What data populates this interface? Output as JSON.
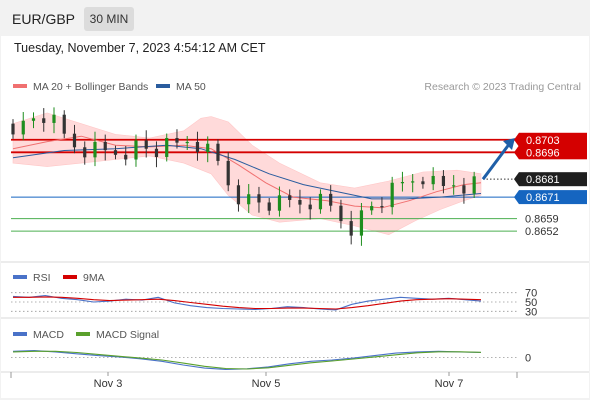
{
  "header": {
    "symbol": "EUR/GBP",
    "timeframe": "30 MIN",
    "datetime": "Tuesday, November 7, 2023 4:54:12 AM CET"
  },
  "legend": {
    "ma20": "MA 20 + Bollinger Bands",
    "ma50": "MA 50",
    "copyright": "Research © 2023 Trading Central",
    "rsi": "RSI",
    "rsi_ma": "9MA",
    "macd": "MACD",
    "macd_signal": "MACD Signal"
  },
  "colors": {
    "candle_up": "#1e8e1e",
    "candle_down": "#333333",
    "ma20": "#f07070",
    "ma50": "#2a5c9e",
    "band_fill": "#ffd6d6",
    "resistance": "#d40000",
    "pivot": "#1565c0",
    "support": "#4caf50",
    "rsi": "#4a72c8",
    "rsi_ma": "#d40000",
    "macd": "#4a72c8",
    "macd_signal": "#5aa02c",
    "current_price_bg": "#1f1f1f"
  },
  "chart_data": [
    {
      "type": "candlestick",
      "title": "EUR/GBP",
      "x_labels": [
        "Nov 3",
        "Nov 5",
        "Nov 7"
      ],
      "ylim": [
        0.8637,
        0.8728
      ],
      "levels": [
        {
          "label": "0.8703",
          "value": 0.8703,
          "kind": "resistance"
        },
        {
          "label": "0.8696",
          "value": 0.8696,
          "kind": "resistance"
        },
        {
          "label": "0.8671",
          "value": 0.8671,
          "kind": "pivot"
        },
        {
          "label": "0.8659",
          "value": 0.8659,
          "kind": "support"
        },
        {
          "label": "0.8652",
          "value": 0.8652,
          "kind": "support"
        }
      ],
      "current_price": {
        "label": "0.8681",
        "value": 0.8681
      },
      "arrow": {
        "from": 0.8681,
        "to": 0.8704,
        "direction": "up"
      },
      "close_path": [
        [
          0,
          0.8712
        ],
        [
          3,
          0.871
        ],
        [
          6,
          0.8715
        ],
        [
          9,
          0.8716
        ],
        [
          12,
          0.8711
        ],
        [
          15,
          0.8704
        ],
        [
          18,
          0.87
        ],
        [
          21,
          0.8698
        ],
        [
          24,
          0.8697
        ],
        [
          27,
          0.8696
        ],
        [
          30,
          0.8697
        ],
        [
          33,
          0.8698
        ],
        [
          36,
          0.8699
        ],
        [
          39,
          0.8698
        ],
        [
          42,
          0.8697
        ],
        [
          45,
          0.8698
        ],
        [
          48,
          0.8699
        ],
        [
          51,
          0.8703
        ],
        [
          54,
          0.8701
        ],
        [
          57,
          0.8696
        ],
        [
          60,
          0.869
        ],
        [
          63,
          0.868
        ],
        [
          66,
          0.8673
        ],
        [
          69,
          0.8669
        ],
        [
          72,
          0.8668
        ],
        [
          75,
          0.8667
        ],
        [
          78,
          0.8666
        ],
        [
          81,
          0.8667
        ],
        [
          84,
          0.8668
        ],
        [
          87,
          0.8669
        ],
        [
          90,
          0.8668
        ],
        [
          93,
          0.8665
        ],
        [
          96,
          0.866
        ],
        [
          98,
          0.8655
        ],
        [
          100,
          0.8656
        ],
        [
          102,
          0.866
        ],
        [
          105,
          0.8666
        ],
        [
          108,
          0.8669
        ],
        [
          111,
          0.8673
        ],
        [
          114,
          0.8677
        ],
        [
          117,
          0.8681
        ],
        [
          120,
          0.8683
        ],
        [
          123,
          0.8678
        ],
        [
          126,
          0.8676
        ],
        [
          129,
          0.868
        ],
        [
          132,
          0.8679
        ],
        [
          135,
          0.8679
        ],
        [
          137,
          0.8681
        ]
      ],
      "ma20_path": [
        [
          0,
          0.8698
        ],
        [
          10,
          0.8702
        ],
        [
          20,
          0.8705
        ],
        [
          30,
          0.87
        ],
        [
          40,
          0.8699
        ],
        [
          50,
          0.87
        ],
        [
          58,
          0.8698
        ],
        [
          66,
          0.8689
        ],
        [
          74,
          0.8679
        ],
        [
          82,
          0.8671
        ],
        [
          92,
          0.8669
        ],
        [
          100,
          0.8666
        ],
        [
          108,
          0.8665
        ],
        [
          116,
          0.8669
        ],
        [
          124,
          0.8674
        ],
        [
          132,
          0.8678
        ],
        [
          137,
          0.8679
        ]
      ],
      "ma50_path": [
        [
          0,
          0.8693
        ],
        [
          15,
          0.8697
        ],
        [
          30,
          0.8698
        ],
        [
          45,
          0.87
        ],
        [
          55,
          0.8698
        ],
        [
          65,
          0.8692
        ],
        [
          75,
          0.8684
        ],
        [
          85,
          0.8678
        ],
        [
          95,
          0.8674
        ],
        [
          105,
          0.867
        ],
        [
          115,
          0.867
        ],
        [
          125,
          0.8671
        ],
        [
          137,
          0.8673
        ]
      ],
      "bollinger_upper": [
        [
          0,
          0.8712
        ],
        [
          10,
          0.8718
        ],
        [
          20,
          0.8712
        ],
        [
          30,
          0.8706
        ],
        [
          40,
          0.8704
        ],
        [
          50,
          0.8708
        ],
        [
          55,
          0.8715
        ],
        [
          58,
          0.8716
        ],
        [
          63,
          0.8713
        ],
        [
          70,
          0.87
        ],
        [
          78,
          0.869
        ],
        [
          90,
          0.8679
        ],
        [
          100,
          0.8676
        ],
        [
          110,
          0.868
        ],
        [
          120,
          0.8685
        ],
        [
          130,
          0.8686
        ],
        [
          137,
          0.8684
        ]
      ],
      "bollinger_lower": [
        [
          0,
          0.869
        ],
        [
          10,
          0.8688
        ],
        [
          20,
          0.869
        ],
        [
          30,
          0.8692
        ],
        [
          40,
          0.8694
        ],
        [
          50,
          0.869
        ],
        [
          58,
          0.8684
        ],
        [
          63,
          0.8672
        ],
        [
          70,
          0.8661
        ],
        [
          78,
          0.8657
        ],
        [
          90,
          0.8659
        ],
        [
          100,
          0.8655
        ],
        [
          110,
          0.865
        ],
        [
          118,
          0.8658
        ],
        [
          125,
          0.8664
        ],
        [
          132,
          0.8669
        ],
        [
          137,
          0.8672
        ]
      ]
    },
    {
      "type": "line",
      "title": "RSI",
      "ylim": [
        20,
        80
      ],
      "y_ticks": [
        "70",
        "50",
        "30"
      ],
      "series": [
        {
          "name": "RSI",
          "values": [
            62,
            60,
            64,
            58,
            55,
            50,
            52,
            56,
            54,
            60,
            48,
            42,
            38,
            36,
            35,
            34,
            36,
            40,
            38,
            35,
            33,
            45,
            52,
            56,
            60,
            58,
            56,
            58,
            55,
            52
          ]
        },
        {
          "name": "9MA",
          "values": [
            60,
            60,
            61,
            60,
            58,
            55,
            53,
            54,
            55,
            56,
            53,
            49,
            45,
            41,
            38,
            36,
            36,
            37,
            37,
            36,
            35,
            38,
            42,
            47,
            52,
            55,
            56,
            57,
            56,
            55
          ]
        }
      ]
    },
    {
      "type": "line",
      "title": "MACD",
      "ylim": [
        -1,
        1
      ],
      "y_ticks": [
        "0"
      ],
      "series": [
        {
          "name": "MACD",
          "values": [
            0.5,
            0.55,
            0.45,
            0.3,
            0.15,
            0.05,
            -0.1,
            -0.3,
            -0.6,
            -0.85,
            -0.95,
            -0.9,
            -0.75,
            -0.5,
            -0.3,
            -0.2,
            -0.05,
            0.15,
            0.35,
            0.45,
            0.5,
            0.45,
            0.4
          ]
        },
        {
          "name": "MACD Signal",
          "values": [
            0.45,
            0.5,
            0.5,
            0.4,
            0.25,
            0.1,
            -0.05,
            -0.2,
            -0.45,
            -0.7,
            -0.88,
            -0.92,
            -0.82,
            -0.62,
            -0.42,
            -0.28,
            -0.12,
            0.05,
            0.22,
            0.38,
            0.46,
            0.46,
            0.42
          ]
        }
      ]
    }
  ]
}
